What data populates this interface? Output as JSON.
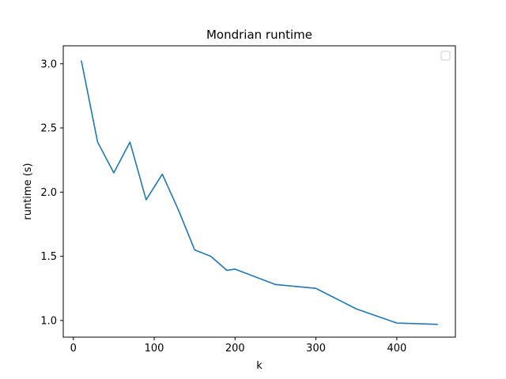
{
  "chart_data": {
    "type": "line",
    "title": "Mondrian runtime",
    "xlabel": "k",
    "ylabel": "runtime (s)",
    "xlim": [
      -12.5,
      472.5
    ],
    "ylim": [
      0.87,
      3.14
    ],
    "xticks": [
      0,
      100,
      200,
      300,
      400
    ],
    "xtick_labels": [
      "0",
      "100",
      "200",
      "300",
      "400"
    ],
    "yticks": [
      1.0,
      1.5,
      2.0,
      2.5,
      3.0
    ],
    "ytick_labels": [
      "1.0",
      "1.5",
      "2.0",
      "2.5",
      "3.0"
    ],
    "grid": false,
    "legend": {
      "location": "top-right",
      "entries": []
    },
    "series": [
      {
        "color": "#1f77b4",
        "x": [
          10,
          30,
          50,
          70,
          90,
          110,
          130,
          150,
          170,
          190,
          200,
          250,
          300,
          350,
          400,
          450
        ],
        "y": [
          3.02,
          2.39,
          2.15,
          2.39,
          1.94,
          2.14,
          1.86,
          1.55,
          1.5,
          1.39,
          1.4,
          1.28,
          1.25,
          1.09,
          0.98,
          0.97
        ]
      }
    ]
  }
}
